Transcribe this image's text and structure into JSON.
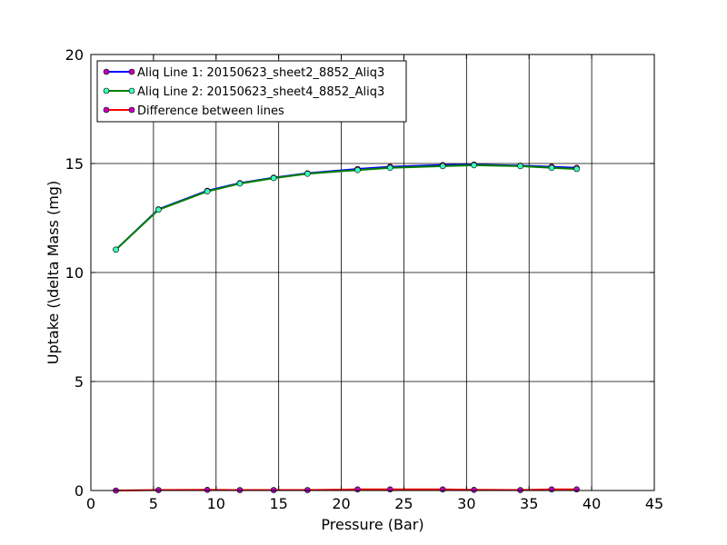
{
  "chart_data": {
    "type": "line",
    "title": "",
    "xlabel": "Pressure (Bar)",
    "ylabel": "Uptake (\\delta Mass (mg)",
    "xlim": [
      0,
      45
    ],
    "ylim": [
      0,
      20
    ],
    "x_ticks": [
      0,
      5,
      10,
      15,
      20,
      25,
      30,
      35,
      40,
      45
    ],
    "y_ticks": [
      0,
      5,
      10,
      15,
      20
    ],
    "grid": true,
    "legend_position": "top-left",
    "series": [
      {
        "name": "Aliq Line 1: 20150623_sheet2_8852_Aliq3",
        "line_color": "#0000ff",
        "marker_color": "#bf00bf",
        "x": [
          2.0,
          5.4,
          9.3,
          11.9,
          14.6,
          17.3,
          21.3,
          23.9,
          28.1,
          30.6,
          34.3,
          36.8,
          38.8
        ],
        "y": [
          11.05,
          12.9,
          13.75,
          14.1,
          14.35,
          14.55,
          14.75,
          14.85,
          14.93,
          14.95,
          14.9,
          14.85,
          14.8
        ]
      },
      {
        "name": "Aliq Line 2: 20150623_sheet4_8852_Aliq3",
        "line_color": "#008000",
        "marker_color": "#3fffbf",
        "x": [
          2.0,
          5.4,
          9.3,
          11.9,
          14.6,
          17.3,
          21.3,
          23.9,
          28.1,
          30.6,
          34.3,
          36.8,
          38.8
        ],
        "y": [
          11.05,
          12.88,
          13.72,
          14.08,
          14.33,
          14.53,
          14.7,
          14.8,
          14.88,
          14.92,
          14.88,
          14.8,
          14.75
        ]
      },
      {
        "name": "Difference between lines",
        "line_color": "#ff0000",
        "marker_color": "#bf00bf",
        "x": [
          2.0,
          5.4,
          9.3,
          11.9,
          14.6,
          17.3,
          21.3,
          23.9,
          28.1,
          30.6,
          34.3,
          36.8,
          38.8
        ],
        "y": [
          0.0,
          0.02,
          0.03,
          0.02,
          0.02,
          0.02,
          0.05,
          0.05,
          0.05,
          0.03,
          0.02,
          0.05,
          0.05
        ]
      }
    ]
  }
}
